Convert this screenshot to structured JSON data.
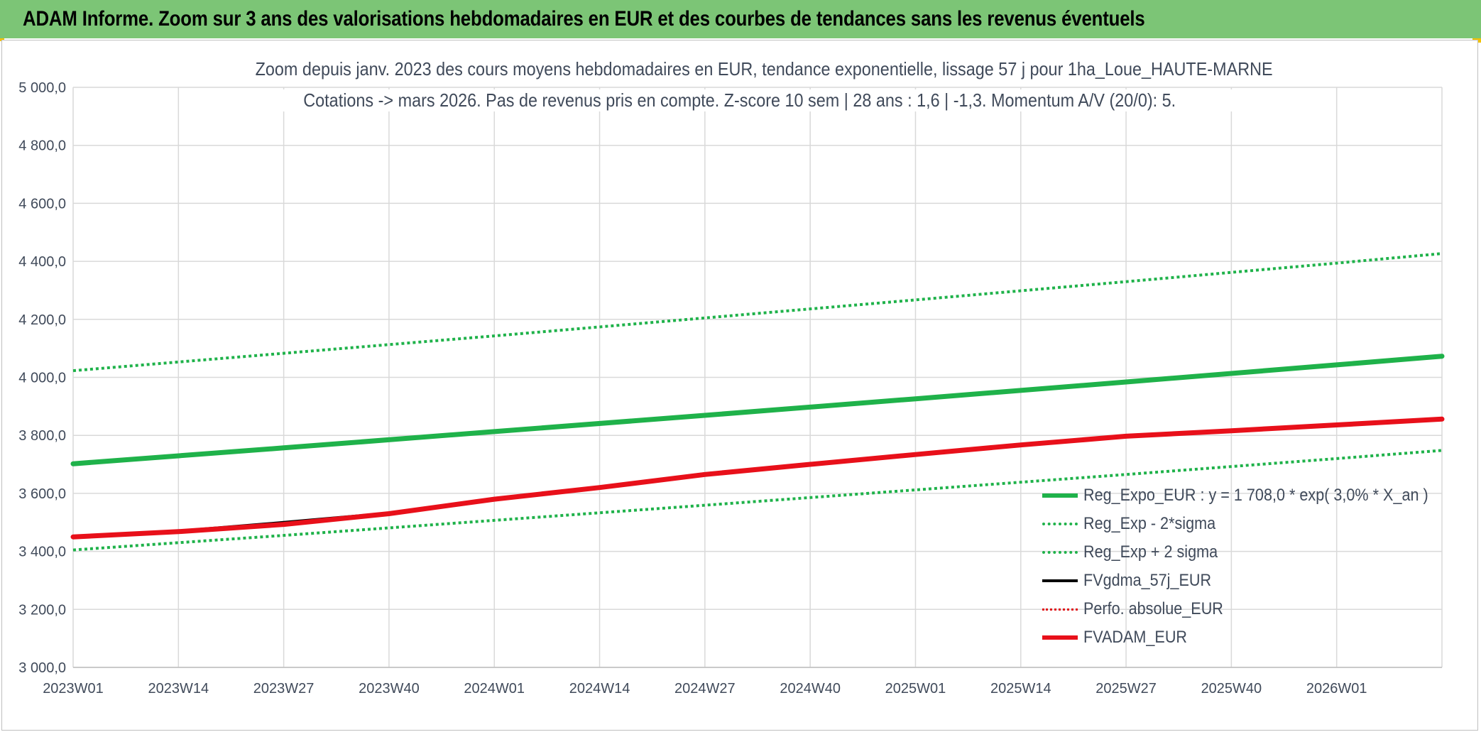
{
  "header": {
    "title": "ADAM Informe. Zoom sur 3 ans des valorisations hebdomadaires en EUR et des courbes de tendances sans les revenus éventuels"
  },
  "colors": {
    "header_bg": "#7cc576",
    "trend_green": "#1fb24a",
    "black": "#000000",
    "red": "#e8101a",
    "grid": "#d9d9d9",
    "text": "#404a5a"
  },
  "chart_data": {
    "type": "line",
    "title_line1": "Zoom depuis janv. 2023 des cours moyens hebdomadaires en EUR, tendance exponentielle, lissage 57 j pour 1ha_Loue_HAUTE-MARNE",
    "title_line2": "Cotations -> mars 2026. Pas de revenus pris en compte. Z-score 10 sem | 28 ans : 1,6 | -1,3. Momentum A/V (20/0): 5.",
    "xlabel": "",
    "ylabel": "",
    "ylim": [
      3000,
      5000
    ],
    "ytick_labels": [
      "3 000,0",
      "3 200,0",
      "3 400,0",
      "3 600,0",
      "3 800,0",
      "4 000,0",
      "4 200,0",
      "4 400,0",
      "4 600,0",
      "4 800,0",
      "5 000,0"
    ],
    "y_ticks": [
      3000,
      3200,
      3400,
      3600,
      3800,
      4000,
      4200,
      4400,
      4600,
      4800,
      5000
    ],
    "x_tick_labels": [
      "2023W01",
      "2023W14",
      "2023W27",
      "2023W40",
      "2024W01",
      "2024W14",
      "2024W27",
      "2024W40",
      "2025W01",
      "2025W14",
      "2025W27",
      "2025W40",
      "2026W01"
    ],
    "x_tick_weeks": [
      0,
      13,
      26,
      39,
      52,
      65,
      78,
      91,
      104,
      117,
      130,
      143,
      156
    ],
    "x_last_week": 169,
    "grid": true,
    "legend_position": "bottom-right",
    "series": [
      {
        "name": "Reg_Expo_EUR : y = 1 708,0 * exp( 3,0% *  X_an )",
        "style": "solid",
        "color": "#1fb24a",
        "width": 7,
        "x_weeks": [
          0,
          26,
          52,
          78,
          104,
          130,
          156,
          169
        ],
        "values": [
          3702,
          3757,
          3813,
          3869,
          3926,
          3984,
          4043,
          4073
        ]
      },
      {
        "name": "Reg_Exp - 2*sigma",
        "style": "dotted",
        "color": "#1fb24a",
        "width": 4,
        "x_weeks": [
          0,
          26,
          52,
          78,
          104,
          130,
          156,
          169
        ],
        "values": [
          3405,
          3455,
          3507,
          3559,
          3612,
          3665,
          3720,
          3748
        ]
      },
      {
        "name": "Reg_Exp + 2 sigma",
        "style": "dotted",
        "color": "#1fb24a",
        "width": 4,
        "x_weeks": [
          0,
          26,
          52,
          78,
          104,
          130,
          156,
          169
        ],
        "values": [
          4023,
          4083,
          4143,
          4205,
          4267,
          4330,
          4394,
          4427
        ]
      },
      {
        "name": "FVgdma_57j_EUR",
        "style": "solid",
        "color": "#000000",
        "width": 4,
        "x_weeks": [
          0,
          13,
          26,
          39,
          52,
          65,
          78,
          91,
          104,
          117,
          130,
          143,
          156,
          169
        ],
        "values": [
          3450,
          3470,
          3500,
          3532,
          3582,
          3622,
          3668,
          3702,
          3735,
          3768,
          3800,
          3818,
          3838,
          3857
        ]
      },
      {
        "name": "Perfo. absolue_EUR",
        "style": "dotted",
        "color": "#e0161a",
        "width": 3,
        "x_weeks": [
          0,
          13,
          26,
          39,
          52,
          65,
          78,
          91,
          104,
          117,
          130,
          143,
          156,
          169
        ],
        "values": [
          3450,
          3469,
          3494,
          3530,
          3580,
          3620,
          3665,
          3700,
          3734,
          3768,
          3798,
          3817,
          3836,
          3856
        ]
      },
      {
        "name": "FVADAM_EUR",
        "style": "solid",
        "color": "#e8101a",
        "width": 7,
        "x_weeks": [
          0,
          13,
          26,
          39,
          52,
          65,
          78,
          91,
          104,
          117,
          130,
          143,
          156,
          169
        ],
        "values": [
          3450,
          3468,
          3493,
          3530,
          3580,
          3620,
          3665,
          3700,
          3734,
          3767,
          3797,
          3816,
          3836,
          3856
        ]
      }
    ]
  }
}
